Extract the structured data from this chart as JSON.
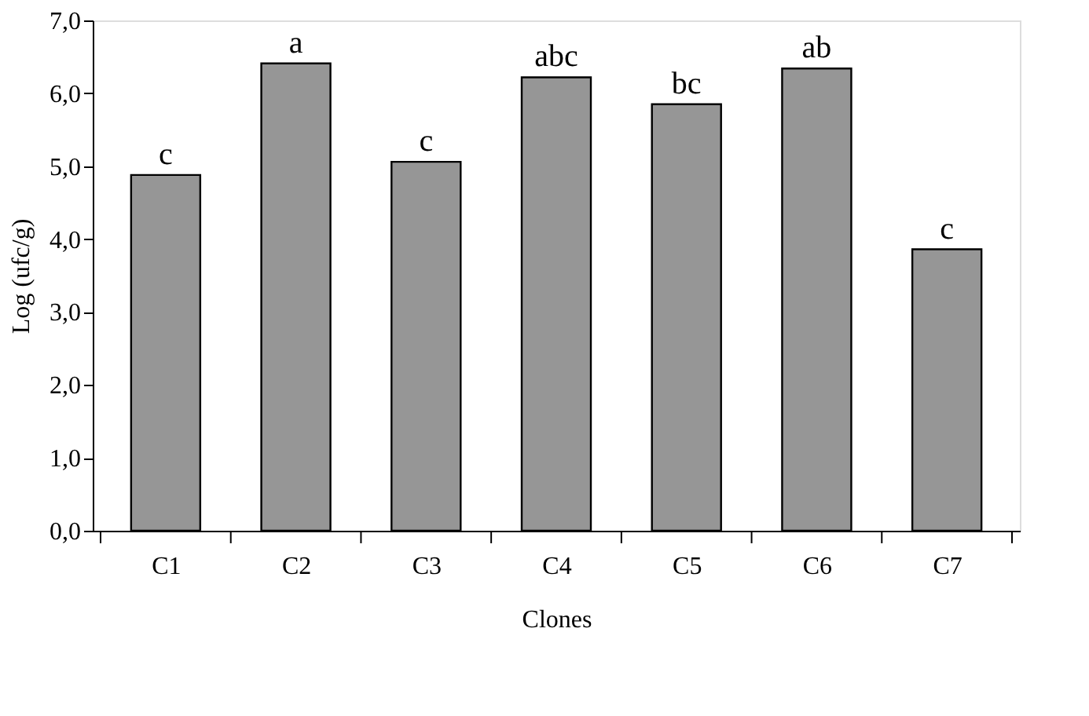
{
  "chart_data": {
    "type": "bar",
    "xlabel": "Clones",
    "ylabel": "Log (ufc/g)",
    "categories": [
      "C1",
      "C2",
      "C3",
      "C4",
      "C5",
      "C6",
      "C7"
    ],
    "values": [
      4.88,
      6.41,
      5.06,
      6.22,
      5.85,
      6.34,
      3.86
    ],
    "color": "#969696",
    "ylim": [
      0,
      7
    ],
    "yticks": [
      {
        "value": 0,
        "label": "0,0"
      },
      {
        "value": 1,
        "label": "1,0"
      },
      {
        "value": 2,
        "label": "2,0"
      },
      {
        "value": 3,
        "label": "3,0"
      },
      {
        "value": 4,
        "label": "4,0"
      },
      {
        "value": 5,
        "label": "5,0"
      },
      {
        "value": 6,
        "label": "6,0"
      },
      {
        "value": 7,
        "label": "7,0"
      }
    ],
    "grid": false,
    "annotations": [
      {
        "text": "c",
        "x": "C1",
        "y": 4.88
      },
      {
        "text": "a",
        "x": "C2",
        "y": 6.41
      },
      {
        "text": "c",
        "x": "C3",
        "y": 5.06
      },
      {
        "text": "abc",
        "x": "C4",
        "y": 6.22
      },
      {
        "text": "bc",
        "x": "C5",
        "y": 5.85
      },
      {
        "text": "ab",
        "x": "C6",
        "y": 6.34
      },
      {
        "text": "c",
        "x": "C7",
        "y": 3.86
      }
    ]
  }
}
